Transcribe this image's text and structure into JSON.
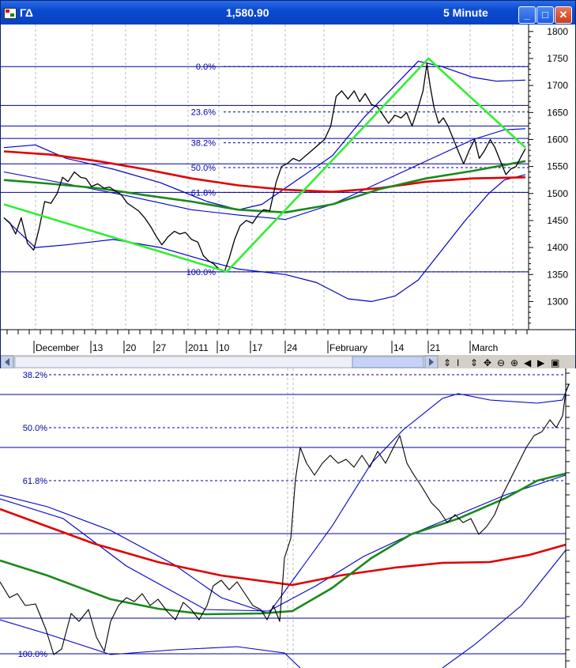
{
  "window": {
    "symbol": "ΓΔ",
    "price": "1,580.90",
    "interval": "5 Minute",
    "buttons": {
      "minimize": "_",
      "maximize": "□",
      "close": "✕"
    }
  },
  "colors": {
    "price": "#000000",
    "ma_red": "#e00000",
    "ma_green": "#1a8a1a",
    "bands": "#0000c8",
    "trend": "#33ee33",
    "fib": "#0000a0",
    "titlebar": "#0a4ad0"
  },
  "toolbar": {
    "icons": [
      "scroll-left-icon",
      "scroll-right-icon",
      "cursor-icon",
      "updown-icon",
      "move-icon",
      "zoom-out-icon",
      "zoom-in-icon",
      "prev-icon",
      "next-icon",
      "maximize-pane-icon"
    ]
  },
  "chart_data": [
    {
      "type": "line",
      "y_axis": {
        "ticks": [
          1300,
          1350,
          1400,
          1450,
          1500,
          1550,
          1600,
          1650,
          1700,
          1750,
          1800
        ],
        "range": [
          1245,
          1810
        ]
      },
      "x_axis": {
        "labels": [
          "December",
          "13",
          "20",
          "27",
          "2011",
          "10",
          "17",
          "24",
          "February",
          "14",
          "21",
          "March"
        ]
      },
      "fib_levels": [
        {
          "label": "0.0%",
          "value": 1735
        },
        {
          "label": "23.6%",
          "value": 1651
        },
        {
          "label": "38.2%",
          "value": 1594
        },
        {
          "label": "50.0%",
          "value": 1548
        },
        {
          "label": "61.8%",
          "value": 1502
        },
        {
          "label": "100.0%",
          "value": 1355
        }
      ],
      "horizontal_lines": [
        1735,
        1663,
        1625,
        1602,
        1555,
        1502,
        1355
      ],
      "series": [
        {
          "role": "price",
          "color": "#000000",
          "points": [
            [
              0,
              1455
            ],
            [
              8,
              1445
            ],
            [
              15,
              1425
            ],
            [
              22,
              1455
            ],
            [
              30,
              1408
            ],
            [
              38,
              1395
            ],
            [
              45,
              1435
            ],
            [
              52,
              1485
            ],
            [
              60,
              1482
            ],
            [
              68,
              1500
            ],
            [
              75,
              1530
            ],
            [
              82,
              1522
            ],
            [
              90,
              1540
            ],
            [
              98,
              1530
            ],
            [
              105,
              1528
            ],
            [
              112,
              1513
            ],
            [
              120,
              1518
            ],
            [
              128,
              1510
            ],
            [
              135,
              1512
            ],
            [
              142,
              1505
            ],
            [
              150,
              1498
            ],
            [
              158,
              1482
            ],
            [
              165,
              1475
            ],
            [
              172,
              1468
            ],
            [
              180,
              1455
            ],
            [
              188,
              1438
            ],
            [
              195,
              1420
            ],
            [
              202,
              1405
            ],
            [
              210,
              1420
            ],
            [
              218,
              1430
            ],
            [
              225,
              1425
            ],
            [
              232,
              1428
            ],
            [
              240,
              1415
            ],
            [
              248,
              1410
            ],
            [
              255,
              1385
            ],
            [
              262,
              1375
            ],
            [
              268,
              1370
            ],
            [
              275,
              1360
            ],
            [
              282,
              1355
            ],
            [
              288,
              1380
            ],
            [
              295,
              1415
            ],
            [
              302,
              1440
            ],
            [
              310,
              1450
            ],
            [
              318,
              1445
            ],
            [
              325,
              1460
            ],
            [
              332,
              1470
            ],
            [
              340,
              1468
            ],
            [
              348,
              1520
            ],
            [
              355,
              1550
            ],
            [
              362,
              1555
            ],
            [
              370,
              1565
            ],
            [
              378,
              1560
            ],
            [
              386,
              1570
            ],
            [
              394,
              1580
            ],
            [
              402,
              1590
            ],
            [
              410,
              1600
            ],
            [
              418,
              1625
            ],
            [
              425,
              1680
            ],
            [
              432,
              1690
            ],
            [
              440,
              1675
            ],
            [
              448,
              1690
            ],
            [
              455,
              1670
            ],
            [
              462,
              1685
            ],
            [
              470,
              1665
            ],
            [
              478,
              1660
            ],
            [
              485,
              1645
            ],
            [
              492,
              1630
            ],
            [
              500,
              1645
            ],
            [
              508,
              1640
            ],
            [
              515,
              1650
            ],
            [
              522,
              1625
            ],
            [
              530,
              1660
            ],
            [
              536,
              1690
            ],
            [
              541,
              1740
            ],
            [
              545,
              1700
            ],
            [
              550,
              1660
            ],
            [
              556,
              1630
            ],
            [
              562,
              1640
            ],
            [
              568,
              1625
            ],
            [
              575,
              1600
            ],
            [
              582,
              1575
            ],
            [
              588,
              1555
            ],
            [
              595,
              1580
            ],
            [
              602,
              1600
            ],
            [
              608,
              1565
            ],
            [
              615,
              1580
            ],
            [
              622,
              1600
            ],
            [
              628,
              1585
            ],
            [
              635,
              1560
            ],
            [
              642,
              1535
            ],
            [
              648,
              1545
            ],
            [
              655,
              1550
            ],
            [
              662,
              1570
            ],
            [
              667,
              1583
            ]
          ]
        },
        {
          "role": "moving_average",
          "color": "#e00000",
          "points": [
            [
              0,
              1578
            ],
            [
              60,
              1572
            ],
            [
              120,
              1560
            ],
            [
              180,
              1545
            ],
            [
              240,
              1528
            ],
            [
              300,
              1515
            ],
            [
              360,
              1507
            ],
            [
              420,
              1503
            ],
            [
              480,
              1510
            ],
            [
              540,
              1522
            ],
            [
              600,
              1528
            ],
            [
              667,
              1530
            ]
          ]
        },
        {
          "role": "moving_average",
          "color": "#1a8a1a",
          "points": [
            [
              0,
              1525
            ],
            [
              60,
              1518
            ],
            [
              120,
              1510
            ],
            [
              180,
              1497
            ],
            [
              240,
              1485
            ],
            [
              300,
              1470
            ],
            [
              360,
              1465
            ],
            [
              420,
              1480
            ],
            [
              480,
              1508
            ],
            [
              540,
              1528
            ],
            [
              600,
              1542
            ],
            [
              667,
              1560
            ]
          ]
        },
        {
          "role": "band_upper",
          "color": "#0000c8",
          "points": [
            [
              0,
              1585
            ],
            [
              40,
              1590
            ],
            [
              80,
              1565
            ],
            [
              140,
              1545
            ],
            [
              200,
              1520
            ],
            [
              260,
              1485
            ],
            [
              300,
              1470
            ],
            [
              330,
              1480
            ],
            [
              380,
              1530
            ],
            [
              420,
              1570
            ],
            [
              460,
              1640
            ],
            [
              500,
              1700
            ],
            [
              530,
              1745
            ],
            [
              560,
              1735
            ],
            [
              600,
              1715
            ],
            [
              630,
              1708
            ],
            [
              667,
              1710
            ]
          ]
        },
        {
          "role": "band_lower",
          "color": "#0000c8",
          "points": [
            [
              0,
              1455
            ],
            [
              40,
              1400
            ],
            [
              80,
              1405
            ],
            [
              140,
              1415
            ],
            [
              200,
              1400
            ],
            [
              260,
              1375
            ],
            [
              300,
              1360
            ],
            [
              360,
              1350
            ],
            [
              400,
              1335
            ],
            [
              440,
              1305
            ],
            [
              470,
              1300
            ],
            [
              500,
              1310
            ],
            [
              530,
              1340
            ],
            [
              560,
              1395
            ],
            [
              590,
              1450
            ],
            [
              620,
              1500
            ],
            [
              640,
              1525
            ],
            [
              667,
              1535
            ]
          ]
        },
        {
          "role": "band_middle",
          "color": "#0000c8",
          "points": [
            [
              0,
              1540
            ],
            [
              80,
              1518
            ],
            [
              160,
              1495
            ],
            [
              240,
              1470
            ],
            [
              300,
              1460
            ],
            [
              360,
              1452
            ],
            [
              420,
              1480
            ],
            [
              480,
              1520
            ],
            [
              540,
              1560
            ],
            [
              600,
              1600
            ],
            [
              640,
              1618
            ],
            [
              667,
              1620
            ]
          ]
        },
        {
          "role": "trend",
          "color": "#33ee33",
          "points": [
            [
              0,
              1480
            ],
            [
              285,
              1355
            ],
            [
              543,
              1750
            ],
            [
              667,
              1585
            ]
          ]
        }
      ]
    },
    {
      "type": "line",
      "fib_levels": [
        {
          "label": "38.2%",
          "value": 1594
        },
        {
          "label": "50.0%",
          "value": 1548
        },
        {
          "label": "61.8%",
          "value": 1502
        },
        {
          "label": "100.0%",
          "value": 1355
        }
      ]
    }
  ]
}
